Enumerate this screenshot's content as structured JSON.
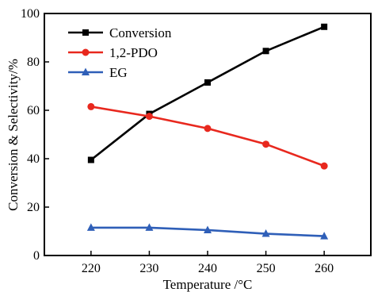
{
  "chart_data": {
    "type": "line",
    "xlabel": "Temperature /°C",
    "ylabel": "Conversion & Selectivity/%",
    "x": [
      220,
      230,
      240,
      250,
      260
    ],
    "xlim": [
      212,
      268
    ],
    "ylim": [
      0,
      100
    ],
    "xticks": [
      220,
      230,
      240,
      250,
      260
    ],
    "yticks": [
      0,
      20,
      40,
      60,
      80,
      100
    ],
    "grid": false,
    "legend_position": "top-left",
    "series": [
      {
        "name": "Conversion",
        "color": "#000000",
        "marker": "square",
        "values": [
          39.5,
          58.5,
          71.5,
          84.5,
          94.5
        ]
      },
      {
        "name": "1,2-PDO",
        "color": "#e8281e",
        "marker": "circle",
        "values": [
          61.5,
          57.5,
          52.5,
          46.0,
          37.0
        ]
      },
      {
        "name": "EG",
        "color": "#2f5fb8",
        "marker": "triangle",
        "values": [
          11.5,
          11.5,
          10.5,
          9.0,
          8.0
        ]
      }
    ]
  }
}
